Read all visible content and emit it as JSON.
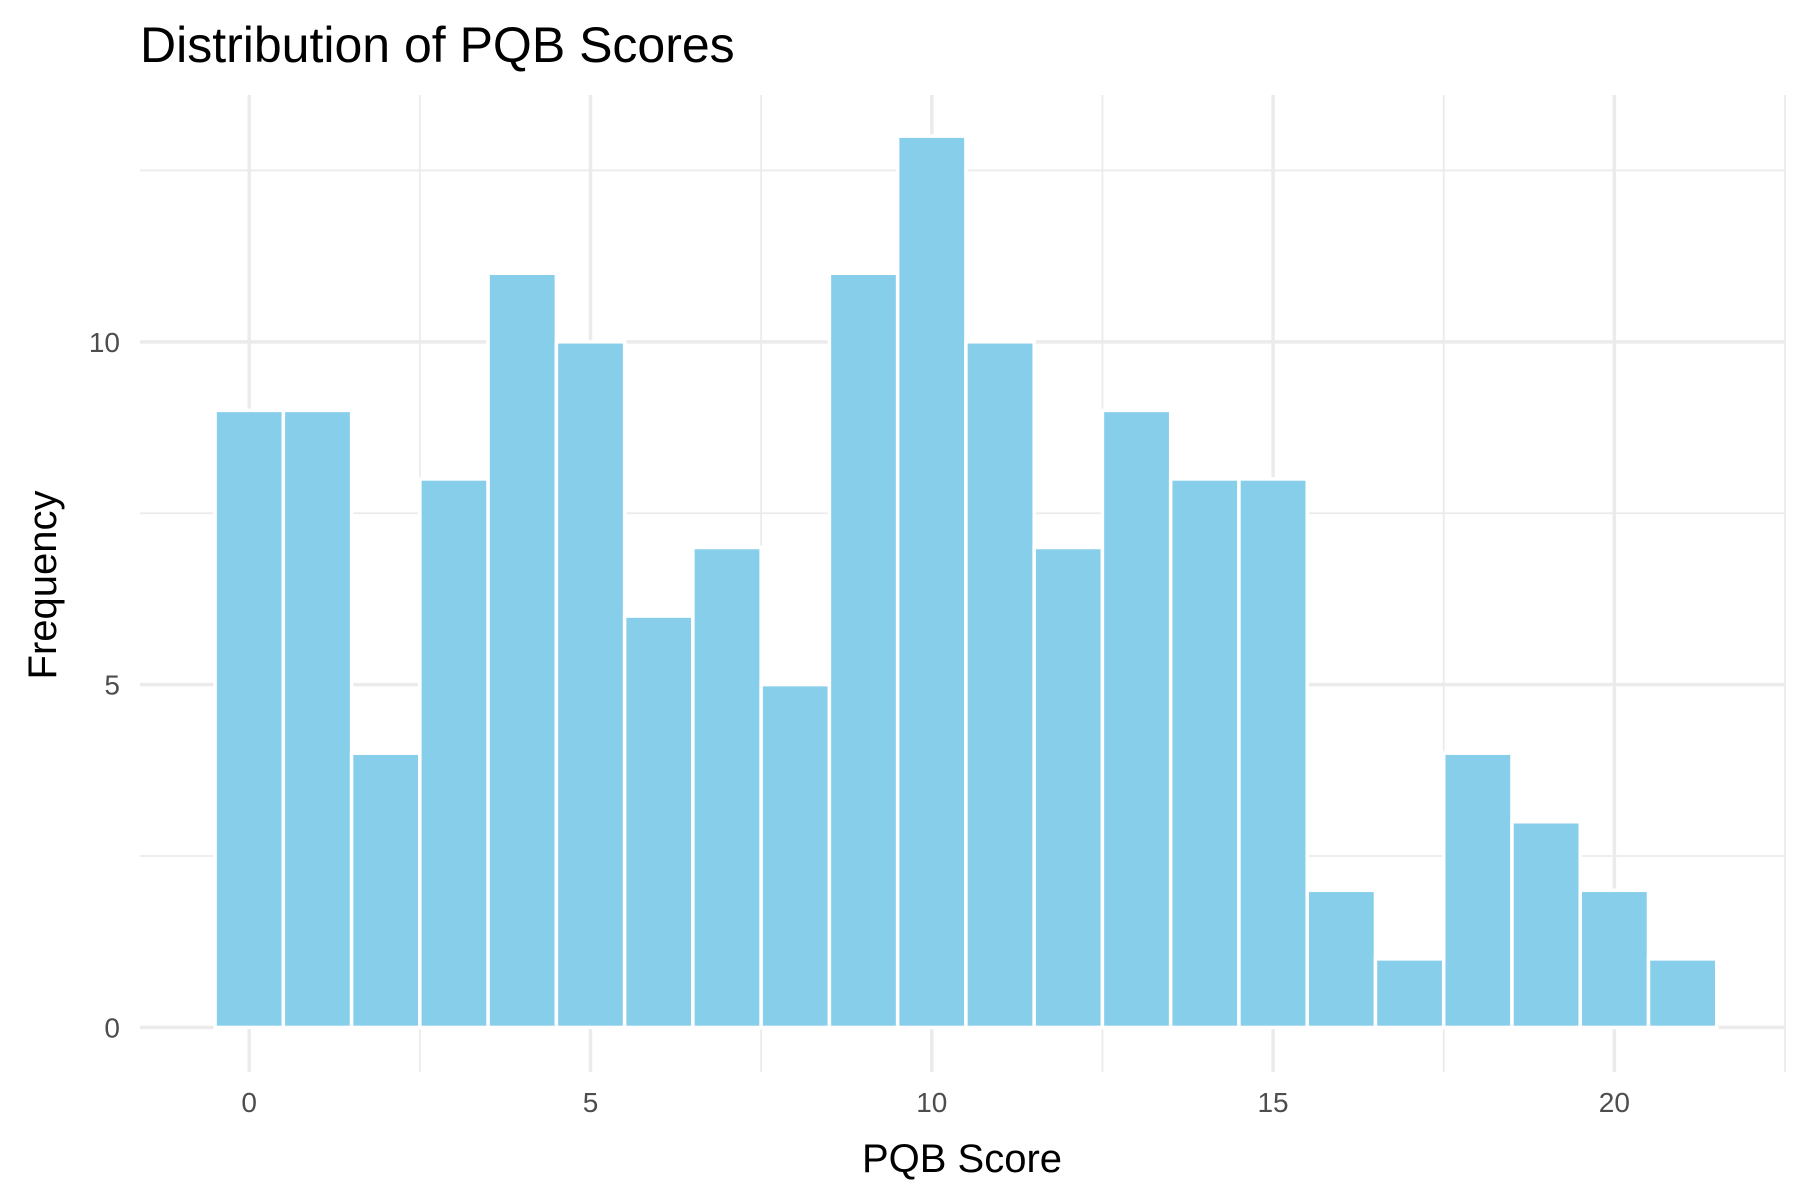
{
  "chart_data": {
    "type": "bar",
    "title": "Distribution of PQB Scores",
    "xlabel": "PQB Score",
    "ylabel": "Frequency",
    "x": [
      0,
      1,
      2,
      3,
      4,
      5,
      6,
      7,
      8,
      9,
      10,
      11,
      12,
      13,
      14,
      15,
      16,
      17,
      18,
      19,
      20,
      21
    ],
    "values": [
      9,
      9,
      4,
      8,
      11,
      10,
      6,
      7,
      5,
      11,
      13,
      10,
      7,
      9,
      8,
      8,
      2,
      1,
      4,
      3,
      2,
      1
    ],
    "bin_width": 1,
    "xlim": [
      -1.6,
      22.5
    ],
    "ylim": [
      -0.65,
      13.6
    ],
    "x_ticks": [
      0,
      5,
      10,
      15,
      20
    ],
    "x_tick_labels": [
      "0",
      "5",
      "10",
      "15",
      "20"
    ],
    "y_ticks": [
      0,
      5,
      10
    ],
    "y_tick_labels": [
      "0",
      "5",
      "10"
    ],
    "grid": true,
    "colors": {
      "bar_fill": "#87ceeb",
      "bar_border": "#ffffff",
      "grid": "#ebebeb",
      "tick_text": "#4d4d4d",
      "title_text": "#000000"
    }
  }
}
